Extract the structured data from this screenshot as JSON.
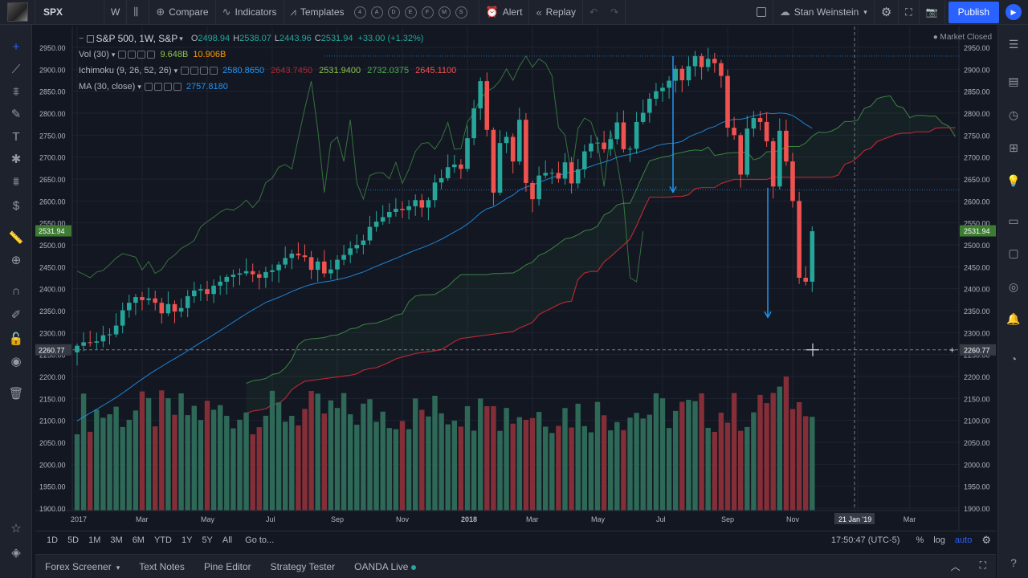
{
  "toolbar": {
    "symbol": "SPX",
    "interval": "W",
    "compare": "Compare",
    "indicators": "Indicators",
    "templates": "Templates",
    "template_letters": [
      "4",
      "A",
      "D",
      "E",
      "F",
      "M",
      "S"
    ],
    "alert": "Alert",
    "replay": "Replay",
    "layout_name": "Stan Weinstein",
    "publish": "Publish"
  },
  "legend": {
    "title": "S&P 500, 1W, S&P",
    "open_label": "O",
    "open": "2498.94",
    "high_label": "H",
    "high": "2538.07",
    "low_label": "L",
    "low": "2443.96",
    "close_label": "C",
    "close": "2531.94",
    "change": "+33.00 (+1.32%)",
    "vol_name": "Vol (30)",
    "vol_1": "9.648B",
    "vol_2": "10.906B",
    "ichimoku_name": "Ichimoku (9, 26, 52, 26)",
    "ichi_1": "2580.8650",
    "ichi_2": "2643.7450",
    "ichi_3": "2531.9400",
    "ichi_4": "2732.0375",
    "ichi_5": "2645.1100",
    "ma_name": "MA (30, close)",
    "ma_value": "2757.8180"
  },
  "market_status": "Market Closed",
  "colors": {
    "up": "#26a69a",
    "down": "#ef5350",
    "ma": "#2196f3",
    "conversion": "#2196f3",
    "base": "#b22833",
    "span_a": "#4caf50",
    "span_b": "#b22833",
    "lagging": "#4caf50",
    "arrow": "#2196f3",
    "cursor_label": "#363a45",
    "price_label": "#3e7c33"
  },
  "chart_data": {
    "type": "candlestick",
    "price_axis": {
      "min": 1900,
      "max": 2950,
      "step": 50,
      "ticks": [
        "2950.00",
        "2900.00",
        "2850.00",
        "2800.00",
        "2750.00",
        "2700.00",
        "2650.00",
        "2600.00",
        "2550.00",
        "2500.00",
        "2450.00",
        "2400.00",
        "2350.00",
        "2300.00",
        "2250.00",
        "2200.00",
        "2150.00",
        "2100.00",
        "2050.00",
        "2000.00",
        "1950.00",
        "1900.00"
      ]
    },
    "time_axis": {
      "labels": [
        "2017",
        "Mar",
        "May",
        "Jul",
        "Sep",
        "Nov",
        "2018",
        "Mar",
        "May",
        "Jul",
        "Sep",
        "Nov",
        "21 Jan '19",
        "Mar"
      ],
      "label_weeks": [
        0,
        10,
        20,
        30,
        40,
        50,
        60,
        70,
        80,
        90,
        100,
        110,
        120,
        128
      ]
    },
    "current_price": "2531.94",
    "cursor_price": "2260.77",
    "cursor_time": "21 Jan '19",
    "closes": [
      2270,
      2278,
      2277,
      2280,
      2294,
      2296,
      2316,
      2351,
      2368,
      2381,
      2374,
      2378,
      2368,
      2344,
      2365,
      2348,
      2356,
      2383,
      2396,
      2399,
      2388,
      2407,
      2416,
      2427,
      2432,
      2435,
      2440,
      2433,
      2425,
      2438,
      2442,
      2455,
      2470,
      2480,
      2476,
      2472,
      2443,
      2462,
      2435,
      2444,
      2466,
      2477,
      2492,
      2500,
      2510,
      2541,
      2553,
      2563,
      2575,
      2582,
      2579,
      2588,
      2602,
      2585,
      2602,
      2642,
      2652,
      2677,
      2683,
      2673,
      2743,
      2811,
      2873,
      2762,
      2619,
      2732,
      2746,
      2690,
      2785,
      2641,
      2604,
      2658,
      2664,
      2664,
      2651,
      2688,
      2640,
      2672,
      2713,
      2731,
      2733,
      2718,
      2741,
      2779,
      2718,
      2719,
      2780,
      2801,
      2833,
      2850,
      2858,
      2874,
      2901,
      2875,
      2907,
      2930,
      2905,
      2924,
      2914,
      2885,
      2767,
      2750,
      2660,
      2765,
      2789,
      2780,
      2736,
      2633,
      2760,
      2690,
      2600,
      2425,
      2416,
      2531
    ],
    "volume_axis_note": "volume histogram shown in lower section, colored by candle direction",
    "ichimoku": {
      "conversion_line": 2580.865,
      "base_line": 2643.745,
      "lagging_span": 2531.94,
      "lead_a": 2732.0375,
      "lead_b": 2645.11
    },
    "ma30": 2757.818,
    "volume": {
      "last": "9.648B",
      "ma": "10.906B"
    }
  },
  "range": {
    "buttons": [
      "1D",
      "5D",
      "1M",
      "3M",
      "6M",
      "YTD",
      "1Y",
      "5Y",
      "All"
    ],
    "goto": "Go to...",
    "clock": "17:50:47 (UTC-5)",
    "percent": "%",
    "log": "log",
    "auto": "auto"
  },
  "panels": [
    "Forex Screener",
    "Text Notes",
    "Pine Editor",
    "Strategy Tester",
    "OANDA Live"
  ]
}
